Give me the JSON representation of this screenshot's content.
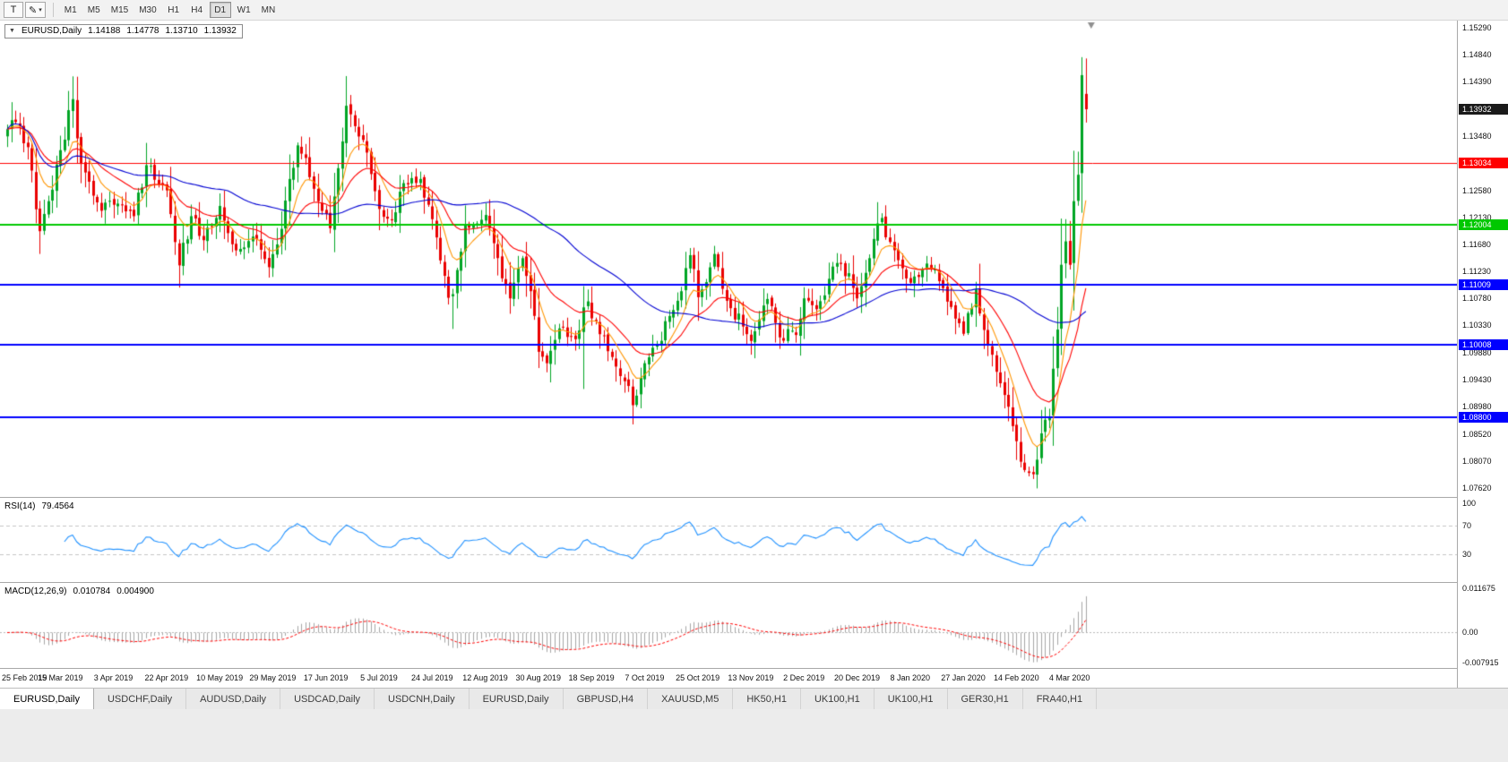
{
  "toolbar": {
    "tools": [
      {
        "name": "text-annotation-tool",
        "glyph": "T",
        "caret": false
      },
      {
        "name": "colors-tool",
        "glyph": "✎",
        "caret": true
      }
    ],
    "timeframes": [
      "M1",
      "M5",
      "M15",
      "M30",
      "H1",
      "H4",
      "D1",
      "W1",
      "MN"
    ],
    "active_timeframe": "D1"
  },
  "chart": {
    "collapse_arrow": "▼",
    "symbol_label": "EURUSD,Daily",
    "ohlc": {
      "open": "1.14188",
      "high": "1.14778",
      "low": "1.13710",
      "close": "1.13932"
    },
    "price_axis": {
      "ticks": [
        "1.15290",
        "1.14840",
        "1.14390",
        "1.13480",
        "1.12580",
        "1.12130",
        "1.11680",
        "1.11230",
        "1.10780",
        "1.10330",
        "1.09880",
        "1.09430",
        "1.08980",
        "1.08520",
        "1.08070",
        "1.07620"
      ],
      "boxes": [
        {
          "label": "1.13932",
          "price": 1.13932,
          "color": "#1a1a1a",
          "name": "current-price-label"
        },
        {
          "label": "1.13034",
          "price": 1.13034,
          "color": "#ff0000",
          "name": "red-hline-label"
        },
        {
          "label": "1.12004",
          "price": 1.12004,
          "color": "#00c800",
          "name": "green-hline-label"
        },
        {
          "label": "1.11009",
          "price": 1.11009,
          "color": "#0000ff",
          "name": "blue-hline-label-1"
        },
        {
          "label": "1.10008",
          "price": 1.10008,
          "color": "#0000ff",
          "name": "blue-hline-label-2"
        },
        {
          "label": "1.08800",
          "price": 1.088,
          "color": "#0000ff",
          "name": "blue-hline-label-3"
        }
      ]
    },
    "rsi": {
      "title": "RSI(14)",
      "value": "79.4564",
      "ticks": [
        {
          "v": 100,
          "label": "100"
        },
        {
          "v": 70,
          "label": "70"
        },
        {
          "v": 30,
          "label": "30"
        }
      ]
    },
    "macd": {
      "title": "MACD(12,26,9)",
      "macd_value": "0.010784",
      "signal_value": "0.004900",
      "ticks": [
        {
          "v": 0.011675,
          "label": "0.011675"
        },
        {
          "v": 0,
          "label": "0.00"
        },
        {
          "v": -0.007915,
          "label": "-0.007915"
        }
      ]
    }
  },
  "tabs": {
    "items": [
      {
        "label": "EURUSD,Daily",
        "active": true
      },
      {
        "label": "USDCHF,Daily"
      },
      {
        "label": "AUDUSD,Daily"
      },
      {
        "label": "USDCAD,Daily"
      },
      {
        "label": "USDCNH,Daily"
      },
      {
        "label": "EURUSD,Daily"
      },
      {
        "label": "GBPUSD,H4"
      },
      {
        "label": "XAUUSD,M5"
      },
      {
        "label": "HK50,H1"
      },
      {
        "label": "UK100,H1"
      },
      {
        "label": "UK100,H1"
      },
      {
        "label": "GER30,H1"
      },
      {
        "label": "FRA40,H1"
      }
    ]
  },
  "chart_data": {
    "type": "candlestick",
    "symbol": "EURUSD",
    "period": "Daily",
    "candle_count": 265,
    "y_range": [
      1.0762,
      1.1529
    ],
    "x_labels": [
      "25 Feb 2019",
      "15 Mar 2019",
      "3 Apr 2019",
      "22 Apr 2019",
      "10 May 2019",
      "29 May 2019",
      "17 Jun 2019",
      "5 Jul 2019",
      "24 Jul 2019",
      "12 Aug 2019",
      "30 Aug 2019",
      "18 Sep 2019",
      "7 Oct 2019",
      "25 Oct 2019",
      "13 Nov 2019",
      "2 Dec 2019",
      "20 Dec 2019",
      "8 Jan 2020",
      "27 Jan 2020",
      "14 Feb 2020",
      "4 Mar 2020"
    ],
    "x_label_indices": [
      0,
      13,
      26,
      39,
      52,
      65,
      78,
      91,
      104,
      117,
      130,
      143,
      156,
      169,
      182,
      195,
      208,
      221,
      234,
      247,
      260
    ],
    "close_keyframes": [
      [
        0,
        1.136
      ],
      [
        2,
        1.1372
      ],
      [
        5,
        1.133
      ],
      [
        8,
        1.119
      ],
      [
        10,
        1.124
      ],
      [
        13,
        1.1325
      ],
      [
        16,
        1.141
      ],
      [
        18,
        1.1302
      ],
      [
        23,
        1.1224
      ],
      [
        26,
        1.1234
      ],
      [
        31,
        1.1215
      ],
      [
        34,
        1.13
      ],
      [
        39,
        1.1258
      ],
      [
        42,
        1.1133
      ],
      [
        45,
        1.1215
      ],
      [
        48,
        1.1175
      ],
      [
        52,
        1.1232
      ],
      [
        56,
        1.1158
      ],
      [
        60,
        1.1181
      ],
      [
        64,
        1.113
      ],
      [
        66,
        1.1168
      ],
      [
        68,
        1.1241
      ],
      [
        71,
        1.1333
      ],
      [
        73,
        1.1312
      ],
      [
        76,
        1.124
      ],
      [
        79,
        1.1195
      ],
      [
        81,
        1.1295
      ],
      [
        83,
        1.1399
      ],
      [
        85,
        1.1365
      ],
      [
        88,
        1.1321
      ],
      [
        91,
        1.1227
      ],
      [
        94,
        1.1208
      ],
      [
        97,
        1.127
      ],
      [
        101,
        1.1277
      ],
      [
        104,
        1.121
      ],
      [
        108,
        1.1079
      ],
      [
        109,
        1.1085
      ],
      [
        112,
        1.12
      ],
      [
        117,
        1.1217
      ],
      [
        119,
        1.117
      ],
      [
        123,
        1.1078
      ],
      [
        126,
        1.1145
      ],
      [
        128,
        1.109
      ],
      [
        130,
        1.0989
      ],
      [
        132,
        1.097
      ],
      [
        135,
        1.1028
      ],
      [
        139,
        1.101
      ],
      [
        141,
        1.1063
      ],
      [
        142,
        1.1073
      ],
      [
        144,
        1.104
      ],
      [
        147,
        1.099
      ],
      [
        151,
        1.094
      ],
      [
        153,
        1.09
      ],
      [
        156,
        1.097
      ],
      [
        159,
        1.1
      ],
      [
        161,
        1.104
      ],
      [
        164,
        1.1074
      ],
      [
        167,
        1.115
      ],
      [
        169,
        1.108
      ],
      [
        173,
        1.1152
      ],
      [
        176,
        1.1074
      ],
      [
        182,
        1.1007
      ],
      [
        186,
        1.1077
      ],
      [
        189,
        1.1013
      ],
      [
        193,
        1.1017
      ],
      [
        195,
        1.1078
      ],
      [
        198,
        1.106
      ],
      [
        202,
        1.1131
      ],
      [
        206,
        1.112
      ],
      [
        208,
        1.1078
      ],
      [
        212,
        1.1177
      ],
      [
        214,
        1.1212
      ],
      [
        216,
        1.1172
      ],
      [
        221,
        1.1104
      ],
      [
        225,
        1.1136
      ],
      [
        229,
        1.1095
      ],
      [
        234,
        1.1019
      ],
      [
        237,
        1.1093
      ],
      [
        240,
        1.1
      ],
      [
        244,
        1.0917
      ],
      [
        247,
        1.084
      ],
      [
        249,
        1.0792
      ],
      [
        251,
        1.0785
      ],
      [
        253,
        1.0853
      ],
      [
        255,
        1.088
      ],
      [
        257,
        1.1026
      ],
      [
        258,
        1.1134
      ],
      [
        259,
        1.1173
      ],
      [
        260,
        1.1134
      ],
      [
        261,
        1.124
      ],
      [
        262,
        1.1284
      ],
      [
        263,
        1.145
      ],
      [
        264,
        1.13932
      ]
    ],
    "wick_overrides": [
      {
        "i": 1,
        "high": 1.1405
      },
      {
        "i": 8,
        "low": 1.1177
      },
      {
        "i": 16,
        "high": 1.1448
      },
      {
        "i": 42,
        "low": 1.1111
      },
      {
        "i": 109,
        "low": 1.1027
      },
      {
        "i": 141,
        "low": 1.0927,
        "high": 1.1087
      },
      {
        "i": 153,
        "low": 1.0879
      },
      {
        "i": 251,
        "low": 1.0777
      },
      {
        "i": 263,
        "high": 1.148
      }
    ],
    "last_candle": {
      "open": 1.14188,
      "high": 1.14778,
      "low": 1.1371,
      "close": 1.13932
    },
    "h_lines": [
      {
        "price": 1.13034,
        "color": "#ff0000",
        "width": 1
      },
      {
        "price": 1.12004,
        "color": "#00c800",
        "width": 2
      },
      {
        "price": 1.11009,
        "color": "#0000ff",
        "width": 2
      },
      {
        "price": 1.10008,
        "color": "#0000ff",
        "width": 2
      },
      {
        "price": 1.088,
        "color": "#0000ff",
        "width": 2
      }
    ],
    "moving_averages": [
      {
        "type": "ema",
        "period": 8,
        "color": "#ff9500"
      },
      {
        "type": "ema",
        "period": 21,
        "color": "#ff0000"
      },
      {
        "type": "sma",
        "period": 55,
        "color": "#0000d2"
      }
    ],
    "indicators": {
      "rsi": {
        "period": 14,
        "current": 79.4564,
        "levels": [
          30,
          70
        ],
        "color": "#1e90ff"
      },
      "macd": {
        "fast": 12,
        "slow": 26,
        "signal": 9,
        "macd_current": 0.010784,
        "signal_current": 0.0049,
        "histogram_color": "#a6a6a6",
        "signal_color": "#ff0000"
      }
    },
    "colors": {
      "up": "#00a524",
      "down": "#ea0000",
      "background": "#ffffff"
    }
  }
}
